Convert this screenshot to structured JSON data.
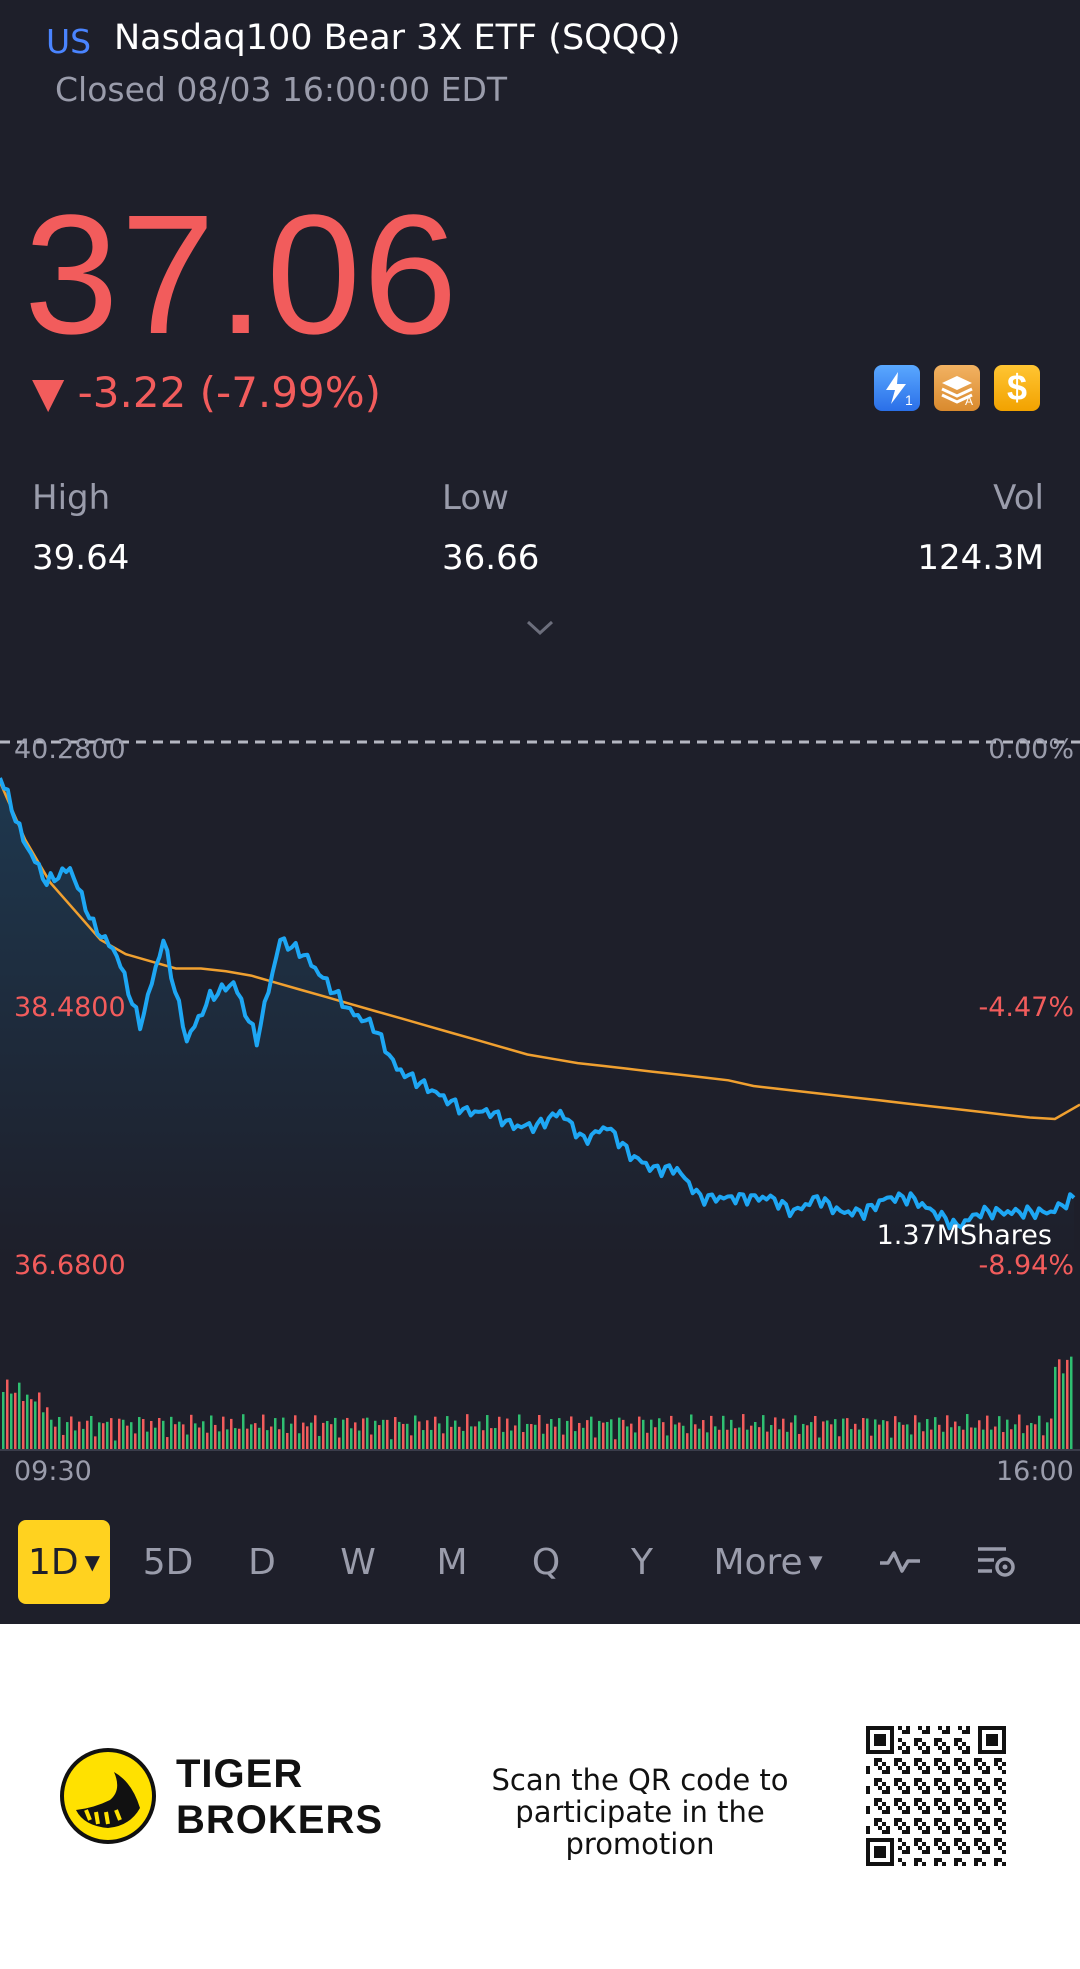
{
  "header": {
    "market": "US",
    "title": "Nasdaq100 Bear 3X ETF (SQQQ)",
    "status": "Closed 08/03 16:00:00 EDT"
  },
  "quote": {
    "price": "37.06",
    "change": "▼ -3.22 (-7.99%)",
    "high_label": "High",
    "high": "39.64",
    "low_label": "Low",
    "low": "36.66",
    "vol_label": "Vol",
    "vol": "124.3M"
  },
  "badges": [
    {
      "icon": "lightning-level1-icon",
      "text": "1"
    },
    {
      "icon": "stack-a-icon",
      "text": "A"
    },
    {
      "icon": "dollar-icon",
      "text": "$"
    }
  ],
  "chart": {
    "top_price": "40.2800",
    "mid_price": "38.4800",
    "low_price": "36.6800",
    "top_pct": "0.00%",
    "mid_pct": "-4.47%",
    "low_pct": "-8.94%",
    "volume_label": "1.37MShares",
    "time_start": "09:30",
    "time_end": "16:00"
  },
  "chart_data": {
    "type": "line",
    "ylim": [
      36.68,
      40.28
    ],
    "x_range": [
      "09:30",
      "16:00"
    ],
    "series": [
      {
        "values": [
          40.05,
          39.6,
          39.3,
          39.4,
          39.0,
          38.8,
          38.3,
          38.9,
          38.2,
          38.5,
          38.6,
          38.2,
          38.9,
          38.8,
          38.6,
          38.4,
          38.3,
          38.0,
          37.9,
          37.8,
          37.7,
          37.7,
          37.6,
          37.6,
          37.7,
          37.5,
          37.6,
          37.4,
          37.3,
          37.3,
          37.1,
          37.1,
          37.1,
          37.1,
          37.0,
          37.1,
          37.0,
          37.0,
          37.1,
          37.1,
          37.0,
          36.9,
          37.0,
          37.0,
          37.0,
          37.0,
          37.1
        ]
      },
      {
        "values": [
          40.0,
          39.6,
          39.3,
          39.1,
          38.9,
          38.8,
          38.75,
          38.7,
          38.7,
          38.68,
          38.65,
          38.6,
          38.55,
          38.5,
          38.45,
          38.4,
          38.35,
          38.3,
          38.25,
          38.2,
          38.15,
          38.1,
          38.07,
          38.04,
          38.02,
          38.0,
          37.98,
          37.96,
          37.94,
          37.92,
          37.88,
          37.86,
          37.84,
          37.82,
          37.8,
          37.78,
          37.76,
          37.74,
          37.72,
          37.7,
          37.68,
          37.66,
          37.65,
          37.75
        ]
      }
    ],
    "grid": true
  },
  "periods": [
    "1D",
    "5D",
    "D",
    "W",
    "M",
    "Q",
    "Y",
    "More"
  ],
  "footer": {
    "brand_line1": "TIGER",
    "brand_line2": "BROKERS",
    "promo_line1": "Scan the QR code to",
    "promo_line2": "participate in the promotion"
  },
  "colors": {
    "up": "#f25c5c",
    "line": "#1ea7f4",
    "avg": "#f0a030",
    "accent": "#ffd21f"
  }
}
